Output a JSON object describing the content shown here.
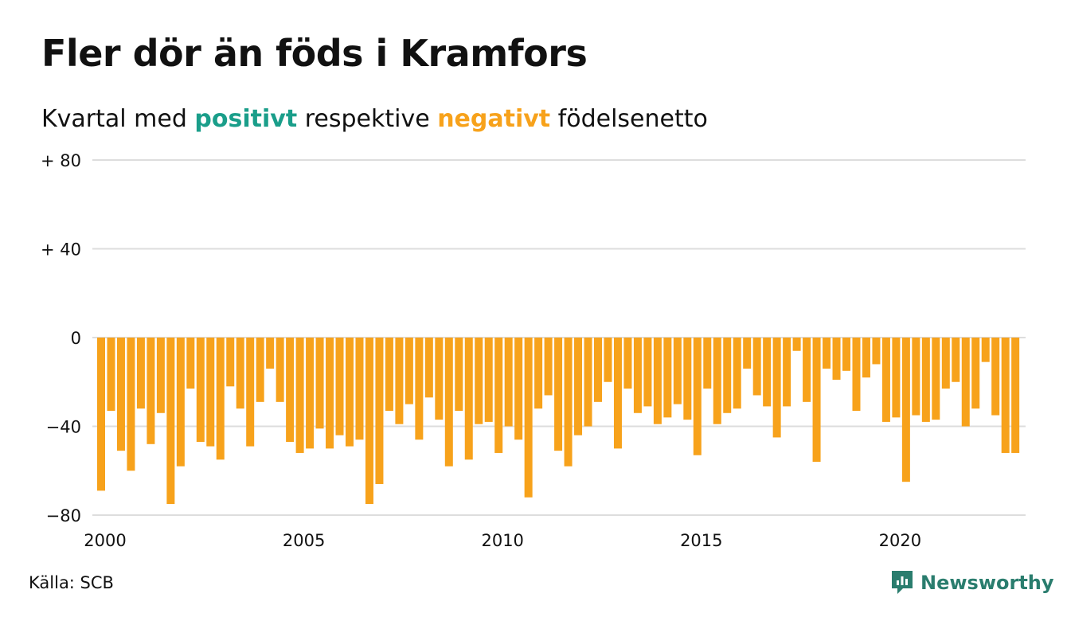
{
  "title": "Fler dör än föds i Kramfors",
  "subtitle": {
    "prefix": "Kvartal med ",
    "positive_word": "positivt",
    "middle": " respektive ",
    "negative_word": "negativt",
    "suffix": " födelsenetto"
  },
  "source": "Källa: SCB",
  "brand": "Newsworthy",
  "colors": {
    "positive": "#1a9e8a",
    "negative": "#f7a21b",
    "grid": "#dddddd",
    "text": "#111111",
    "brand": "#2a7d6e"
  },
  "chart_data": {
    "type": "bar",
    "x_start": "2000 Q1",
    "x_ticks": [
      "2000",
      "2005",
      "2010",
      "2015",
      "2020"
    ],
    "y_ticks": [
      {
        "value": 80,
        "label": "+ 80"
      },
      {
        "value": 40,
        "label": "+ 40"
      },
      {
        "value": 0,
        "label": "0"
      },
      {
        "value": -40,
        "label": "−40"
      },
      {
        "value": -80,
        "label": "−80"
      }
    ],
    "ylim": [
      -80,
      80
    ],
    "grid": true,
    "values": [
      -69,
      -33,
      -51,
      -60,
      -32,
      -48,
      -34,
      -75,
      -58,
      -23,
      -47,
      -49,
      -55,
      -22,
      -32,
      -49,
      -29,
      -14,
      -29,
      -47,
      -52,
      -50,
      -41,
      -50,
      -44,
      -49,
      -46,
      -75,
      -66,
      -33,
      -39,
      -30,
      -46,
      -27,
      -37,
      -58,
      -33,
      -55,
      -39,
      -38,
      -52,
      -40,
      -46,
      -72,
      -32,
      -26,
      -51,
      -58,
      -44,
      -40,
      -29,
      -20,
      -50,
      -23,
      -34,
      -31,
      -39,
      -36,
      -30,
      -37,
      -53,
      -23,
      -39,
      -34,
      -32,
      -14,
      -26,
      -31,
      -45,
      -31,
      -6,
      -29,
      -56,
      -14,
      -19,
      -15,
      -33,
      -18,
      -12,
      -38,
      -36,
      -65,
      -35,
      -38,
      -37,
      -23,
      -20,
      -40,
      -32,
      -11,
      -35,
      -52,
      -52
    ]
  }
}
